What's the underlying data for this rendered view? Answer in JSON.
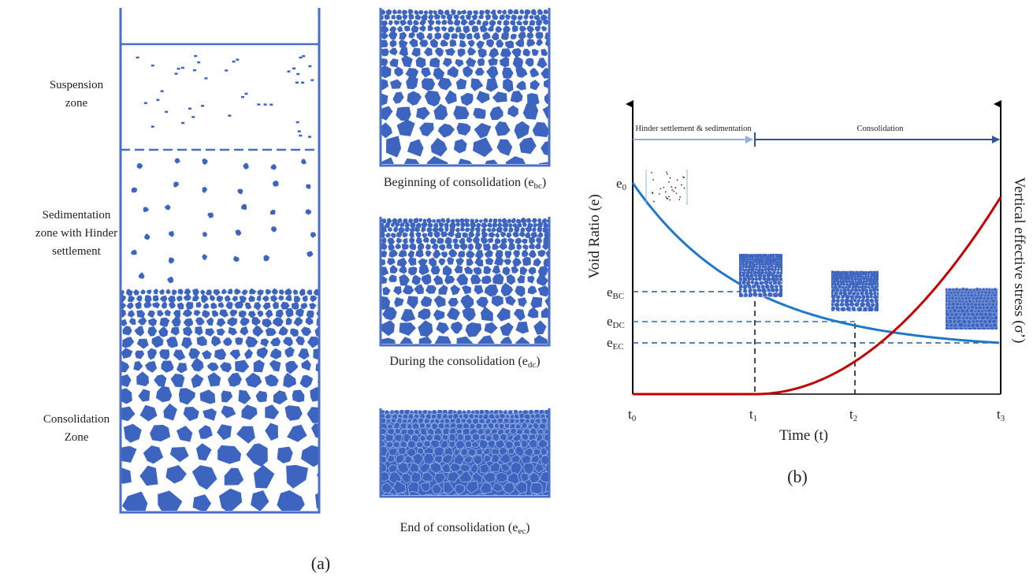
{
  "panel_a": {
    "zones": [
      {
        "lines": [
          "Suspension",
          "zone"
        ]
      },
      {
        "lines": [
          "Sedimentation",
          "zone with Hinder",
          "settlement"
        ]
      },
      {
        "lines": [
          "Consolidation",
          "Zone"
        ]
      }
    ],
    "captions": [
      {
        "text": "Beginning of consolidation (e",
        "sub": "bc",
        "close": ")"
      },
      {
        "text": "During the consolidation (e",
        "sub": "dc",
        "close": ")"
      },
      {
        "text": "End of consolidation (e",
        "sub": "ec",
        "close": ")"
      }
    ],
    "label": "(a)"
  },
  "panel_b": {
    "phase_labels": [
      "Hinder settlement & sedimentation",
      "Consolidation"
    ],
    "void_ratios": [
      {
        "base": "e",
        "sub": "0"
      },
      {
        "base": "e",
        "sub": "BC"
      },
      {
        "base": "e",
        "sub": "DC"
      },
      {
        "base": "e",
        "sub": "EC"
      }
    ],
    "times": [
      {
        "base": "t",
        "sub": "0"
      },
      {
        "base": "t",
        "sub": "1"
      },
      {
        "base": "t",
        "sub": "2"
      },
      {
        "base": "t",
        "sub": "3"
      }
    ],
    "x_axis_label": "Time (t)",
    "y_axis_label": "Void Ratio (e)",
    "y2_axis_label": "Vertical effective stress (σ’)",
    "label": "(b)"
  }
}
